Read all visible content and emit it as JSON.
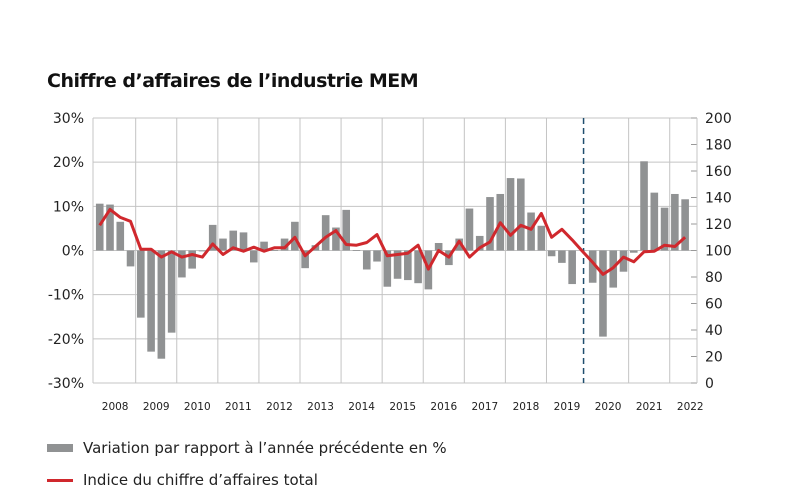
{
  "chart_data": {
    "type": "bar+line",
    "title": "Chiffre d’affaires de l’industrie MEM",
    "x_ticks": [
      "2008",
      "2009",
      "2010",
      "2011",
      "2012",
      "2013",
      "2014",
      "2015",
      "2016",
      "2017",
      "2018",
      "2019",
      "2020",
      "2021",
      "2022"
    ],
    "left_axis": {
      "ylim": [
        -30,
        30
      ],
      "ticks": [
        "-30%",
        "-20%",
        "-10%",
        "0%",
        "10%",
        "20%",
        "30%"
      ]
    },
    "right_axis": {
      "ylim": [
        0,
        200
      ],
      "ticks": [
        "0",
        "20",
        "40",
        "60",
        "80",
        "100",
        "120",
        "140",
        "160",
        "180",
        "200"
      ]
    },
    "grid": true,
    "legend_placement": "bottom",
    "periods": [
      "2008 Q1",
      "2008 Q2",
      "2008 Q3",
      "2008 Q4",
      "2009 Q1",
      "2009 Q2",
      "2009 Q3",
      "2009 Q4",
      "2010 Q1",
      "2010 Q2",
      "2010 Q3",
      "2010 Q4",
      "2011 Q1",
      "2011 Q2",
      "2011 Q3",
      "2011 Q4",
      "2012 Q1",
      "2012 Q2",
      "2012 Q3",
      "2012 Q4",
      "2013 Q1",
      "2013 Q2",
      "2013 Q3",
      "2013 Q4",
      "2014 Q1",
      "2014 Q2",
      "2014 Q3",
      "2014 Q4",
      "2015 Q1",
      "2015 Q2",
      "2015 Q3",
      "2015 Q4",
      "2016 Q1",
      "2016 Q2",
      "2016 Q3",
      "2016 Q4",
      "2017 Q1",
      "2017 Q2",
      "2017 Q3",
      "2017 Q4",
      "2018 Q1",
      "2018 Q2",
      "2018 Q3",
      "2018 Q4",
      "2019 Q1",
      "2019 Q2",
      "2019 Q3",
      "2019 Q4",
      "2020 Q1",
      "2020 Q2",
      "2020 Q3",
      "2020 Q4",
      "2021 Q1",
      "2021 Q2",
      "2021 Q3",
      "2021 Q4",
      "2022 Q1",
      "2022 Q2"
    ],
    "series": [
      {
        "name": "Variation par rapport à l’année précédente en %",
        "type": "bar",
        "axis": "left",
        "color": "#909293",
        "values": [
          10.6,
          10.4,
          6.5,
          -3.6,
          -15.2,
          -22.9,
          -24.5,
          -18.6,
          -6.1,
          -4.1,
          -0.2,
          5.8,
          2.7,
          4.5,
          4.1,
          -2.7,
          2.0,
          0.1,
          2.7,
          6.5,
          -4.0,
          1.2,
          8.0,
          5.2,
          9.2,
          0.1,
          -4.3,
          -2.5,
          -8.2,
          -6.4,
          -6.7,
          -7.4,
          -8.8,
          1.7,
          -3.3,
          2.7,
          9.5,
          3.3,
          12.1,
          12.8,
          16.4,
          16.3,
          8.6,
          5.6,
          -1.3,
          -2.8,
          -7.6,
          null,
          -7.3,
          -19.5,
          -8.4,
          -4.8,
          -0.5,
          20.2,
          13.1,
          9.7,
          12.8,
          11.6
        ]
      },
      {
        "name": "Indice du chiffre d’affaires total",
        "type": "line",
        "axis": "right",
        "color": "#d0282d",
        "values": [
          119,
          131,
          125,
          122,
          101,
          101,
          95,
          99,
          95,
          97,
          95,
          105,
          97,
          102,
          99.5,
          102.5,
          99.5,
          102,
          102,
          110,
          96,
          103,
          110,
          115,
          104.5,
          104,
          106,
          112,
          96,
          97,
          98,
          104,
          86,
          100,
          95,
          107,
          95,
          102,
          106.5,
          121,
          111.5,
          119,
          116,
          128,
          110,
          116,
          108,
          99.5,
          91,
          82,
          87,
          95,
          91.5,
          99,
          99.5,
          104,
          103,
          110
        ]
      }
    ],
    "annotations": [
      {
        "type": "vertical-dashed-line",
        "at": "2020 Q1",
        "color": "#1f4e6e"
      }
    ]
  }
}
